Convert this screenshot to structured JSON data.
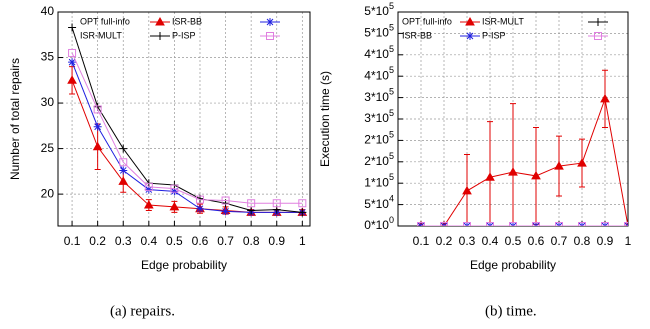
{
  "chart_data": [
    {
      "type": "line",
      "ylabel": "Number of total repairs",
      "xlabel": "Edge probability",
      "caption": "(a) repairs.",
      "x": [
        0.1,
        0.2,
        0.3,
        0.4,
        0.5,
        0.6,
        0.7,
        0.8,
        0.9,
        1
      ],
      "xlim": [
        0.045,
        1.03
      ],
      "xticks": [
        0.1,
        0.2,
        0.3,
        0.4,
        0.5,
        0.6,
        0.7,
        0.8,
        0.9,
        1
      ],
      "ylim": [
        16.5,
        40
      ],
      "yticks": [
        20,
        25,
        30,
        35,
        40
      ],
      "grid": true,
      "series": [
        {
          "name": "OPT full-info",
          "color": "#e00000",
          "marker": "triangle",
          "values": [
            32.5,
            25.2,
            21.4,
            18.8,
            18.6,
            18.4,
            18.2,
            18.0,
            18.0,
            18.0
          ],
          "errors": [
            1.5,
            2.5,
            1.2,
            0.6,
            0.6,
            0.5,
            0.4,
            0.3,
            0.3,
            0.3
          ]
        },
        {
          "name": "ISR-BB",
          "color": "#2020e0",
          "marker": "star",
          "values": [
            34.5,
            27.4,
            22.6,
            20.5,
            20.3,
            18.4,
            18.1,
            18.0,
            18.0,
            18.0
          ]
        },
        {
          "name": "ISR-MULT",
          "color": "#000000",
          "marker": "plus",
          "values": [
            38.3,
            29.6,
            25.0,
            21.2,
            21.0,
            19.5,
            19.0,
            18.2,
            18.3,
            18.0
          ]
        },
        {
          "name": "P-ISP",
          "color": "#e080e0",
          "marker": "square",
          "values": [
            35.5,
            29.3,
            23.5,
            20.8,
            20.6,
            19.4,
            19.3,
            19.0,
            19.0,
            19.0
          ]
        }
      ]
    },
    {
      "type": "line",
      "ylabel": "Execution time (s)",
      "xlabel": "Edge probability",
      "caption": "(b) time.",
      "x": [
        0.1,
        0.2,
        0.3,
        0.4,
        0.5,
        0.6,
        0.7,
        0.8,
        0.9,
        1
      ],
      "xlim": [
        0,
        1
      ],
      "xticks": [
        0.1,
        0.2,
        0.3,
        0.4,
        0.5,
        0.6,
        0.7,
        0.8,
        0.9,
        1
      ],
      "ylim": [
        0,
        500000
      ],
      "yticks": [
        {
          "value": 0,
          "label": "0*10^0"
        },
        {
          "value": 50000,
          "label": "5*10^4"
        },
        {
          "value": 100000,
          "label": "1*10^5"
        },
        {
          "value": 150000,
          "label": "2*10^5"
        },
        {
          "value": 200000,
          "label": "2*10^5"
        },
        {
          "value": 250000,
          "label": "3*10^5"
        },
        {
          "value": 300000,
          "label": "3*10^5"
        },
        {
          "value": 350000,
          "label": "4*10^5"
        },
        {
          "value": 400000,
          "label": "4*10^5"
        },
        {
          "value": 450000,
          "label": "5*10^5"
        },
        {
          "value": 500000,
          "label": "5*10^5"
        }
      ],
      "grid": true,
      "series": [
        {
          "name": "OPT full-info",
          "color": "#e00000",
          "marker": "triangle",
          "values": [
            0,
            0,
            82000,
            114000,
            126000,
            117000,
            140000,
            147000,
            297000,
            0
          ],
          "errors": [
            0,
            0,
            85000,
            130000,
            160000,
            113000,
            70000,
            56000,
            67000,
            0
          ]
        },
        {
          "name": "ISR-MULT",
          "color": "#000000",
          "marker": "plus",
          "values": [
            0,
            0,
            0,
            0,
            0,
            0,
            0,
            0,
            0,
            0
          ]
        },
        {
          "name": "ISR-BB",
          "color": "#2020e0",
          "marker": "star",
          "values": [
            0,
            0,
            0,
            0,
            0,
            0,
            0,
            0,
            0,
            0
          ]
        },
        {
          "name": "P-ISP",
          "color": "#e080e0",
          "marker": "square",
          "values": [
            0,
            0,
            0,
            0,
            0,
            0,
            0,
            0,
            0,
            0
          ]
        }
      ]
    }
  ]
}
